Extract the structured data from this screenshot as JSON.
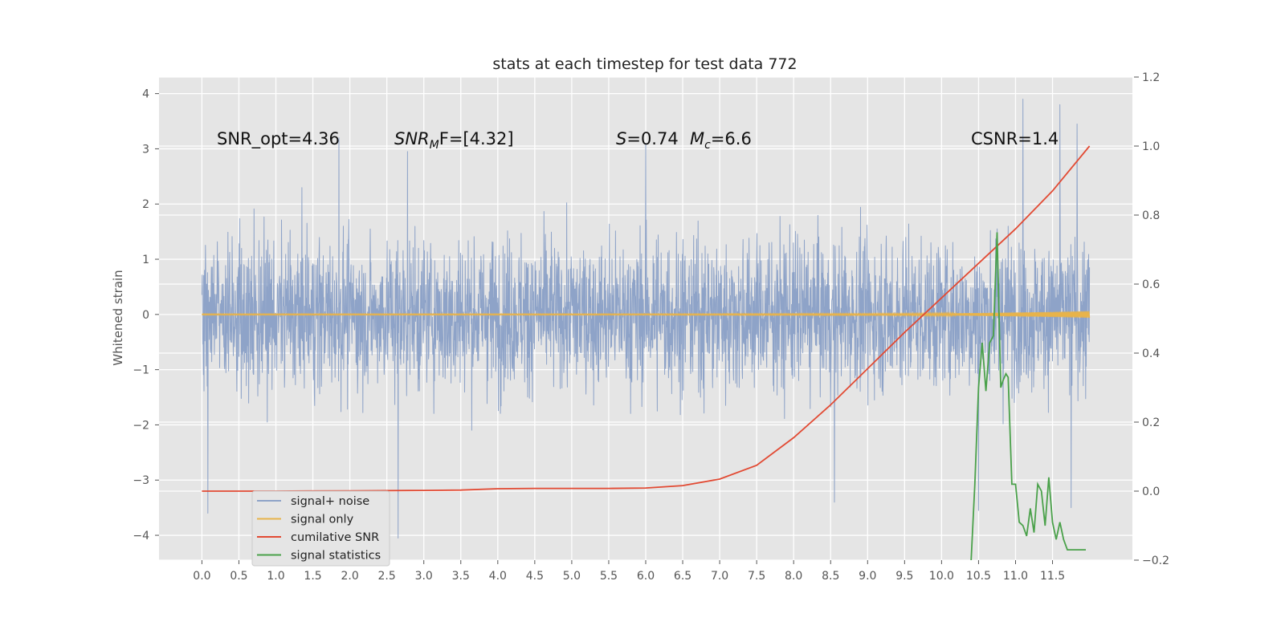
{
  "chart_data": {
    "type": "line",
    "title": "stats at each timestep for test data 772",
    "ylabel": "Whitened strain",
    "xlabel": "",
    "xlim": [
      -0.58,
      12.58
    ],
    "ylim": [
      -4.45,
      4.3
    ],
    "y2lim": [
      -0.2,
      1.2
    ],
    "grid": true,
    "background": "#e5e5e5",
    "x_ticks": [
      "0.0",
      "0.5",
      "1.0",
      "1.5",
      "2.0",
      "2.5",
      "3.0",
      "3.5",
      "4.0",
      "4.5",
      "5.0",
      "5.5",
      "6.0",
      "6.5",
      "7.0",
      "7.5",
      "8.0",
      "8.5",
      "9.0",
      "9.5",
      "10.0",
      "10.5",
      "11.0",
      "11.5"
    ],
    "y_ticks": [
      "4",
      "3",
      "2",
      "1",
      "0",
      "−1",
      "−2",
      "−3",
      "−4"
    ],
    "y2_ticks": [
      "1.2",
      "1.0",
      "0.8",
      "0.6",
      "0.4",
      "0.2",
      "0.0",
      "−0.2"
    ],
    "annotations": {
      "snr_opt": "SNR_opt=4.36",
      "snr_mf_main": "SNR",
      "snr_mf_sub": "M",
      "snr_mf_rest": "F=[4.32]",
      "s_main": "S",
      "s_rest": "=0.74",
      "mc_main": "M",
      "mc_sub": "c",
      "mc_rest": "=6.6",
      "csnr": "CSNR=1.4"
    },
    "legend": {
      "placement": "lower-left",
      "entries": [
        "signal+ noise",
        "signal only",
        "cumilative SNR",
        "signal statistics"
      ]
    },
    "series": [
      {
        "name": "signal+ noise",
        "axis": "left",
        "color": "#8ea3c8",
        "x_range": [
          0.0,
          12.0
        ],
        "typical_envelope": [
          -1.9,
          1.9
        ],
        "peaks": [
          {
            "x": 0.08,
            "y": -3.6
          },
          {
            "x": 1.85,
            "y": 3.2
          },
          {
            "x": 2.65,
            "y": -4.05
          },
          {
            "x": 2.78,
            "y": 2.95
          },
          {
            "x": 6.0,
            "y": 3.1
          },
          {
            "x": 8.55,
            "y": -3.4
          },
          {
            "x": 11.1,
            "y": 3.9
          },
          {
            "x": 11.6,
            "y": 3.8
          },
          {
            "x": 11.75,
            "y": -3.5
          },
          {
            "x": 11.83,
            "y": 3.45
          },
          {
            "x": 10.5,
            "y": -3.55
          }
        ]
      },
      {
        "name": "signal only",
        "axis": "left",
        "color": "#e8b34a",
        "x": [
          0.0,
          6.0,
          9.5,
          10.5,
          11.0,
          11.5,
          12.0
        ],
        "amplitude": [
          0.01,
          0.01,
          0.015,
          0.025,
          0.035,
          0.045,
          0.06
        ]
      },
      {
        "name": "cumilative SNR",
        "axis": "right",
        "color": "#e24a33",
        "x": [
          0.0,
          1.0,
          2.0,
          3.0,
          3.5,
          4.0,
          4.5,
          5.0,
          5.5,
          6.0,
          6.5,
          7.0,
          7.5,
          8.0,
          8.5,
          9.0,
          9.5,
          10.0,
          10.5,
          11.0,
          11.5,
          12.0
        ],
        "y": [
          0.0,
          0.0,
          0.001,
          0.002,
          0.003,
          0.007,
          0.008,
          0.008,
          0.008,
          0.009,
          0.016,
          0.035,
          0.075,
          0.155,
          0.25,
          0.355,
          0.46,
          0.56,
          0.66,
          0.76,
          0.87,
          1.0
        ]
      },
      {
        "name": "signal statistics",
        "axis": "right",
        "color": "#348abd",
        "draw_color": "#4aa14a",
        "x": [
          10.4,
          10.45,
          10.5,
          10.55,
          10.6,
          10.65,
          10.7,
          10.75,
          10.8,
          10.83,
          10.87,
          10.9,
          10.95,
          11.0,
          11.05,
          11.1,
          11.15,
          11.2,
          11.25,
          11.3,
          11.35,
          11.4,
          11.45,
          11.5,
          11.55,
          11.6,
          11.65,
          11.7,
          11.75,
          11.8,
          11.85,
          11.9,
          11.95
        ],
        "y": [
          -0.2,
          0.02,
          0.3,
          0.43,
          0.29,
          0.43,
          0.45,
          0.75,
          0.3,
          0.32,
          0.34,
          0.33,
          0.02,
          0.02,
          -0.09,
          -0.1,
          -0.13,
          -0.05,
          -0.12,
          0.02,
          0.0,
          -0.1,
          0.04,
          -0.09,
          -0.14,
          -0.09,
          -0.14,
          -0.17,
          -0.17,
          -0.17,
          -0.17,
          -0.17,
          -0.17
        ]
      }
    ]
  }
}
